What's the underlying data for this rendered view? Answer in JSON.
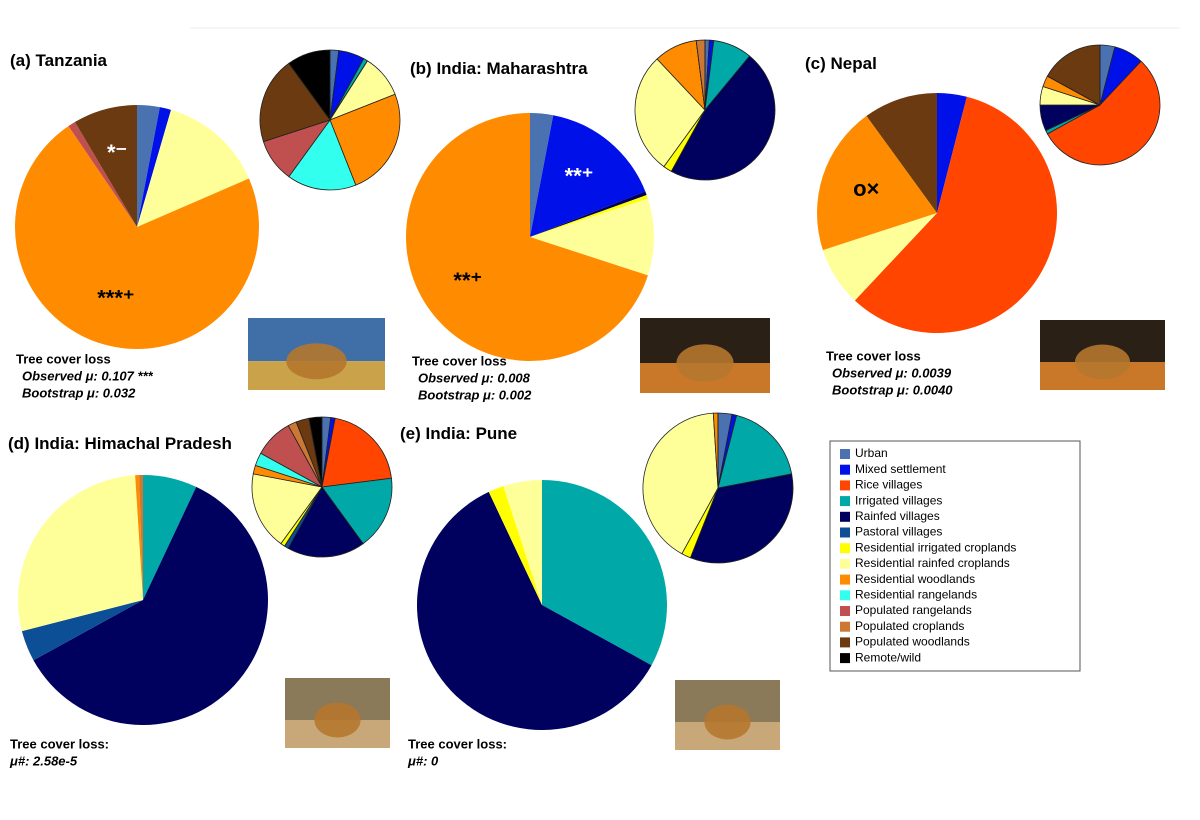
{
  "legend": {
    "categories": [
      "Urban",
      "Mixed settlement",
      "Rice villages",
      "Irrigated villages",
      "Rainfed villages",
      "Pastoral villages",
      "Residential irrigated croplands",
      "Residential rainfed croplands",
      "Residential woodlands",
      "Residential rangelands",
      "Populated rangelands",
      "Populated croplands",
      "Populated woodlands",
      "Remote/wild"
    ],
    "colors": [
      "#4a72b0",
      "#0010e8",
      "#ff4500",
      "#00a8a8",
      "#00005e",
      "#0c4f96",
      "#ffff00",
      "#ffff99",
      "#ff8c00",
      "#33ffee",
      "#c05050",
      "#cc7733",
      "#6b3a10",
      "#000000"
    ]
  },
  "chart_data": [
    {
      "type": "pie",
      "label": "(a)",
      "title": "Tanzania",
      "values": [
        3,
        1.5,
        0,
        0,
        0,
        0,
        0,
        14,
        72,
        0,
        1,
        0,
        8.5,
        0
      ],
      "inset_values": [
        2,
        6,
        0,
        1,
        0,
        0,
        0,
        10,
        25,
        16,
        10,
        0,
        20,
        10
      ],
      "slice_labels": [
        null,
        null,
        null,
        null,
        null,
        null,
        null,
        null,
        "***⁺",
        null,
        null,
        null,
        "*⁻",
        null
      ],
      "stats": [
        "Tree cover loss",
        "Observed μ: 0.107 ***",
        "Bootstrap μ: 0.032"
      ]
    },
    {
      "type": "pie",
      "label": "(b)",
      "title": "India: Maharashtra",
      "values": [
        3,
        16,
        0,
        0,
        0.5,
        0,
        0.5,
        10,
        70,
        0,
        0,
        0,
        0,
        0
      ],
      "inset_values": [
        1,
        1,
        0,
        9,
        47,
        0,
        2,
        28,
        10,
        0,
        0,
        2,
        0,
        0
      ],
      "slice_labels": [
        null,
        "**⁺",
        null,
        null,
        null,
        null,
        null,
        null,
        "**⁺",
        null,
        null,
        null,
        null,
        null
      ],
      "stats": [
        "Tree cover loss",
        "Observed μ: 0.008",
        "Bootstrap μ: 0.002"
      ]
    },
    {
      "type": "pie",
      "label": "(c)",
      "title": "Nepal",
      "values": [
        0,
        4,
        58,
        0,
        0,
        0,
        0,
        8,
        20,
        0,
        0,
        0,
        10,
        0
      ],
      "inset_values": [
        4,
        8,
        55,
        1,
        7,
        0,
        0,
        5,
        3,
        0,
        0,
        0,
        17,
        0
      ],
      "slice_labels": [
        null,
        null,
        null,
        null,
        null,
        null,
        null,
        null,
        "o×",
        null,
        null,
        null,
        null,
        null
      ],
      "stats": [
        "Tree cover loss",
        "Observed μ: 0.0039",
        "Bootstrap μ: 0.0040"
      ]
    },
    {
      "type": "pie",
      "label": "(d)",
      "title": "India: Himachal Pradesh",
      "values": [
        0,
        0,
        0,
        7,
        60,
        4,
        0,
        28,
        0.5,
        0,
        0,
        0.5,
        0,
        0
      ],
      "inset_values": [
        2,
        1,
        20,
        17,
        18,
        1,
        1,
        18,
        2,
        3,
        9,
        2,
        3,
        3
      ],
      "slice_labels": [
        null,
        null,
        null,
        null,
        null,
        null,
        null,
        null,
        null,
        null,
        null,
        null,
        null,
        null
      ],
      "stats": [
        "Tree cover loss:",
        "μ#: 2.58e-5"
      ]
    },
    {
      "type": "pie",
      "label": "(e)",
      "title": "India: Pune",
      "values": [
        0,
        0,
        0,
        33,
        60,
        0,
        2,
        5,
        0,
        0,
        0,
        0,
        0,
        0
      ],
      "inset_values": [
        3,
        1,
        0,
        18,
        34,
        0,
        2,
        41,
        1,
        0,
        0,
        0,
        0,
        0
      ],
      "slice_labels": [
        null,
        null,
        null,
        null,
        null,
        null,
        null,
        null,
        null,
        null,
        null,
        null,
        null,
        null
      ],
      "stats": [
        "Tree cover loss:",
        "μ#: 0"
      ]
    }
  ]
}
